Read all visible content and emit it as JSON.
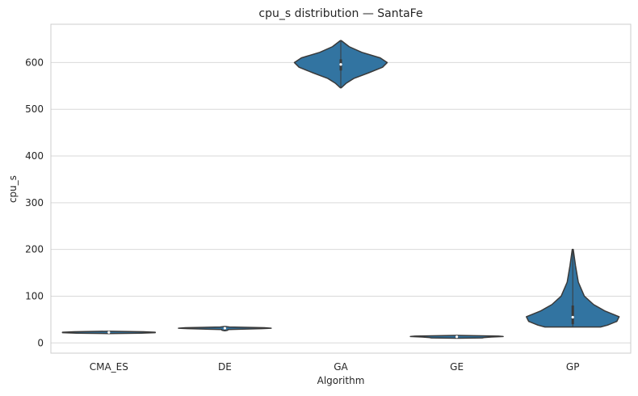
{
  "chart_data": {
    "type": "violin",
    "title": "cpu_s distribution — SantaFe",
    "xlabel": "Algorithm",
    "ylabel": "cpu_s",
    "categories": [
      "CMA_ES",
      "DE",
      "GA",
      "GE",
      "GP"
    ],
    "ylim": [
      -22,
      682
    ],
    "yticks": [
      0,
      100,
      200,
      300,
      400,
      500,
      600
    ],
    "grid": true,
    "fill_color": "#3274a1",
    "edge_color": "#3a3a3a",
    "grid_color": "#d9d9d9",
    "series": [
      {
        "category": "CMA_ES",
        "min": 20,
        "max": 25,
        "median": 22.5,
        "q1": 21.5,
        "q3": 23.5,
        "profile": [
          [
            20,
            0.0
          ],
          [
            20.8,
            0.7
          ],
          [
            21.8,
            1.0
          ],
          [
            22.8,
            1.0
          ],
          [
            23.8,
            0.75
          ],
          [
            25,
            0.0
          ]
        ]
      },
      {
        "category": "DE",
        "min": 26,
        "max": 35,
        "median": 31.5,
        "q1": 29,
        "q3": 33,
        "profile": [
          [
            26,
            0.0
          ],
          [
            27,
            0.06
          ],
          [
            28.5,
            0.07
          ],
          [
            30.5,
            0.8
          ],
          [
            31.5,
            1.0
          ],
          [
            32.5,
            0.85
          ],
          [
            34,
            0.1
          ],
          [
            35,
            0.0
          ]
        ]
      },
      {
        "category": "GA",
        "min": 546,
        "max": 647,
        "median": 596,
        "q1": 583,
        "q3": 607,
        "profile": [
          [
            546,
            0.0
          ],
          [
            556,
            0.12
          ],
          [
            566,
            0.28
          ],
          [
            578,
            0.6
          ],
          [
            590,
            0.9
          ],
          [
            600,
            1.0
          ],
          [
            610,
            0.85
          ],
          [
            622,
            0.45
          ],
          [
            634,
            0.18
          ],
          [
            647,
            0.0
          ]
        ]
      },
      {
        "category": "GE",
        "min": 10,
        "max": 16,
        "median": 13,
        "q1": 11.5,
        "q3": 14.5,
        "profile": [
          [
            10,
            0.0
          ],
          [
            10.6,
            0.55
          ],
          [
            11.6,
            0.6
          ],
          [
            12.6,
            0.75
          ],
          [
            13.6,
            1.0
          ],
          [
            14.6,
            0.9
          ],
          [
            16,
            0.0
          ]
        ]
      },
      {
        "category": "GP",
        "min": 34,
        "max": 200,
        "median": 55,
        "q1": 40,
        "q3": 80,
        "profile": [
          [
            34,
            0.6
          ],
          [
            38,
            0.75
          ],
          [
            46,
            0.95
          ],
          [
            56,
            1.0
          ],
          [
            68,
            0.7
          ],
          [
            82,
            0.45
          ],
          [
            100,
            0.25
          ],
          [
            130,
            0.12
          ],
          [
            165,
            0.06
          ],
          [
            200,
            0.0
          ]
        ]
      }
    ]
  }
}
